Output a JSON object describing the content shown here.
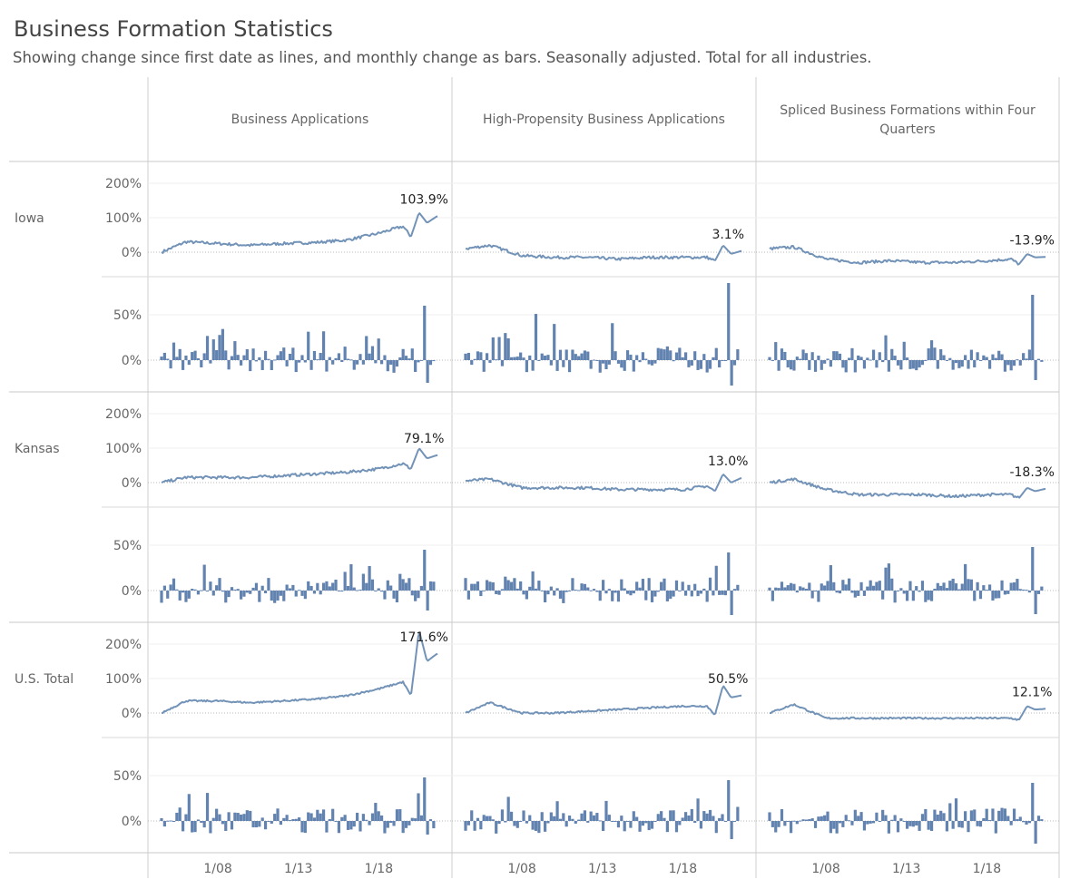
{
  "title": "Business Formation Statistics",
  "subtitle": "Showing change since first date as lines, and monthly change as bars. Seasonally adjusted. Total for all industries.",
  "columns": [
    {
      "label": "Business Applications"
    },
    {
      "label": "High-Propensity Business Applications"
    },
    {
      "label": "Spliced Business Formations within Four Quarters"
    }
  ],
  "rows": [
    {
      "label": "Iowa"
    },
    {
      "label": "Kansas"
    },
    {
      "label": "U.S. Total"
    }
  ],
  "line_axis_ticks": [
    "0%",
    "100%",
    "200%"
  ],
  "bar_axis_ticks": [
    "0%",
    "50%"
  ],
  "x_axis_ticks": [
    "1/08",
    "1/13",
    "1/18"
  ],
  "colors": {
    "series": "#7293b7",
    "bar": "#6283b0",
    "grid": "#d4d4d4",
    "zero": "#bbbbbb"
  },
  "chart_data": {
    "type": "line",
    "description_type": "small-multiples: line (cumulative change) over bar (monthly change)",
    "x_range": [
      "2004-07",
      "2021-08"
    ],
    "line_ylim": [
      -40,
      240
    ],
    "bar_ylim": [
      -35,
      75
    ],
    "line_series": [
      {
        "row": "Iowa",
        "column": "Business Applications",
        "last_value_label": "103.9%",
        "points": [
          [
            2004.5,
            0
          ],
          [
            2006,
            30
          ],
          [
            2008,
            25
          ],
          [
            2010,
            20
          ],
          [
            2012,
            25
          ],
          [
            2014,
            28
          ],
          [
            2016,
            35
          ],
          [
            2018,
            55
          ],
          [
            2019.5,
            75
          ],
          [
            2020,
            45
          ],
          [
            2020.5,
            115
          ],
          [
            2021,
            85
          ],
          [
            2021.6,
            103.9
          ]
        ]
      },
      {
        "row": "Iowa",
        "column": "High-Propensity Business Applications",
        "last_value_label": "3.1%",
        "points": [
          [
            2004.5,
            10
          ],
          [
            2006,
            20
          ],
          [
            2008,
            -10
          ],
          [
            2010,
            -15
          ],
          [
            2012,
            -15
          ],
          [
            2014,
            -20
          ],
          [
            2016,
            -15
          ],
          [
            2018,
            -15
          ],
          [
            2019.5,
            -15
          ],
          [
            2020,
            -25
          ],
          [
            2020.5,
            20
          ],
          [
            2021,
            -5
          ],
          [
            2021.6,
            3.1
          ]
        ]
      },
      {
        "row": "Iowa",
        "column": "Spliced Business Formations within Four Quarters",
        "last_value_label": "-13.9%",
        "points": [
          [
            2004.5,
            10
          ],
          [
            2006,
            15
          ],
          [
            2008,
            -20
          ],
          [
            2010,
            -30
          ],
          [
            2012,
            -25
          ],
          [
            2014,
            -30
          ],
          [
            2016,
            -30
          ],
          [
            2018,
            -25
          ],
          [
            2019.5,
            -20
          ],
          [
            2020,
            -35
          ],
          [
            2020.5,
            -5
          ],
          [
            2021,
            -15
          ],
          [
            2021.6,
            -13.9
          ]
        ]
      },
      {
        "row": "Kansas",
        "column": "Business Applications",
        "last_value_label": "79.1%",
        "points": [
          [
            2004.5,
            0
          ],
          [
            2006,
            15
          ],
          [
            2008,
            15
          ],
          [
            2010,
            15
          ],
          [
            2012,
            20
          ],
          [
            2014,
            25
          ],
          [
            2016,
            30
          ],
          [
            2018,
            40
          ],
          [
            2019.5,
            55
          ],
          [
            2020,
            40
          ],
          [
            2020.5,
            100
          ],
          [
            2021,
            70
          ],
          [
            2021.6,
            79.1
          ]
        ]
      },
      {
        "row": "Kansas",
        "column": "High-Propensity Business Applications",
        "last_value_label": "13.0%",
        "points": [
          [
            2004.5,
            5
          ],
          [
            2006,
            10
          ],
          [
            2008,
            -15
          ],
          [
            2010,
            -15
          ],
          [
            2012,
            -15
          ],
          [
            2014,
            -20
          ],
          [
            2016,
            -20
          ],
          [
            2018,
            -20
          ],
          [
            2019.5,
            -10
          ],
          [
            2020,
            -25
          ],
          [
            2020.5,
            25
          ],
          [
            2021,
            0
          ],
          [
            2021.6,
            13.0
          ]
        ]
      },
      {
        "row": "Kansas",
        "column": "Spliced Business Formations within Four Quarters",
        "last_value_label": "-18.3%",
        "points": [
          [
            2004.5,
            0
          ],
          [
            2006,
            10
          ],
          [
            2008,
            -20
          ],
          [
            2010,
            -35
          ],
          [
            2012,
            -35
          ],
          [
            2014,
            -35
          ],
          [
            2016,
            -40
          ],
          [
            2018,
            -35
          ],
          [
            2019.5,
            -35
          ],
          [
            2020,
            -45
          ],
          [
            2020.5,
            -15
          ],
          [
            2021,
            -25
          ],
          [
            2021.6,
            -18.3
          ]
        ]
      },
      {
        "row": "U.S. Total",
        "column": "Business Applications",
        "last_value_label": "171.6%",
        "points": [
          [
            2004.5,
            0
          ],
          [
            2006,
            35
          ],
          [
            2008,
            35
          ],
          [
            2010,
            30
          ],
          [
            2012,
            35
          ],
          [
            2014,
            40
          ],
          [
            2016,
            50
          ],
          [
            2018,
            70
          ],
          [
            2019.5,
            90
          ],
          [
            2020,
            50
          ],
          [
            2020.5,
            240
          ],
          [
            2021,
            150
          ],
          [
            2021.6,
            171.6
          ]
        ]
      },
      {
        "row": "U.S. Total",
        "column": "High-Propensity Business Applications",
        "last_value_label": "50.5%",
        "points": [
          [
            2004.5,
            0
          ],
          [
            2006,
            30
          ],
          [
            2008,
            0
          ],
          [
            2010,
            0
          ],
          [
            2012,
            5
          ],
          [
            2014,
            10
          ],
          [
            2016,
            15
          ],
          [
            2018,
            20
          ],
          [
            2019.5,
            20
          ],
          [
            2020,
            -5
          ],
          [
            2020.5,
            80
          ],
          [
            2021,
            45
          ],
          [
            2021.6,
            50.5
          ]
        ]
      },
      {
        "row": "U.S. Total",
        "column": "Spliced Business Formations within Four Quarters",
        "last_value_label": "12.1%",
        "points": [
          [
            2004.5,
            0
          ],
          [
            2006,
            25
          ],
          [
            2008,
            -15
          ],
          [
            2010,
            -15
          ],
          [
            2012,
            -15
          ],
          [
            2014,
            -15
          ],
          [
            2016,
            -15
          ],
          [
            2018,
            -15
          ],
          [
            2019.5,
            -15
          ],
          [
            2020,
            -20
          ],
          [
            2020.5,
            20
          ],
          [
            2021,
            10
          ],
          [
            2021.6,
            12.1
          ]
        ]
      }
    ],
    "bar_series": [
      {
        "row": "Iowa",
        "column": "Business Applications",
        "max": 60,
        "min": -25
      },
      {
        "row": "Iowa",
        "column": "High-Propensity Business Applications",
        "max": 85,
        "min": -28
      },
      {
        "row": "Iowa",
        "column": "Spliced Business Formations within Four Quarters",
        "max": 72,
        "min": -22
      },
      {
        "row": "Kansas",
        "column": "Business Applications",
        "max": 45,
        "min": -22
      },
      {
        "row": "Kansas",
        "column": "High-Propensity Business Applications",
        "max": 42,
        "min": -27
      },
      {
        "row": "Kansas",
        "column": "Spliced Business Formations within Four Quarters",
        "max": 48,
        "min": -26
      },
      {
        "row": "U.S. Total",
        "column": "Business Applications",
        "max": 48,
        "min": -15
      },
      {
        "row": "U.S. Total",
        "column": "High-Propensity Business Applications",
        "max": 45,
        "min": -20
      },
      {
        "row": "U.S. Total",
        "column": "Spliced Business Formations within Four Quarters",
        "max": 42,
        "min": -25
      }
    ]
  }
}
